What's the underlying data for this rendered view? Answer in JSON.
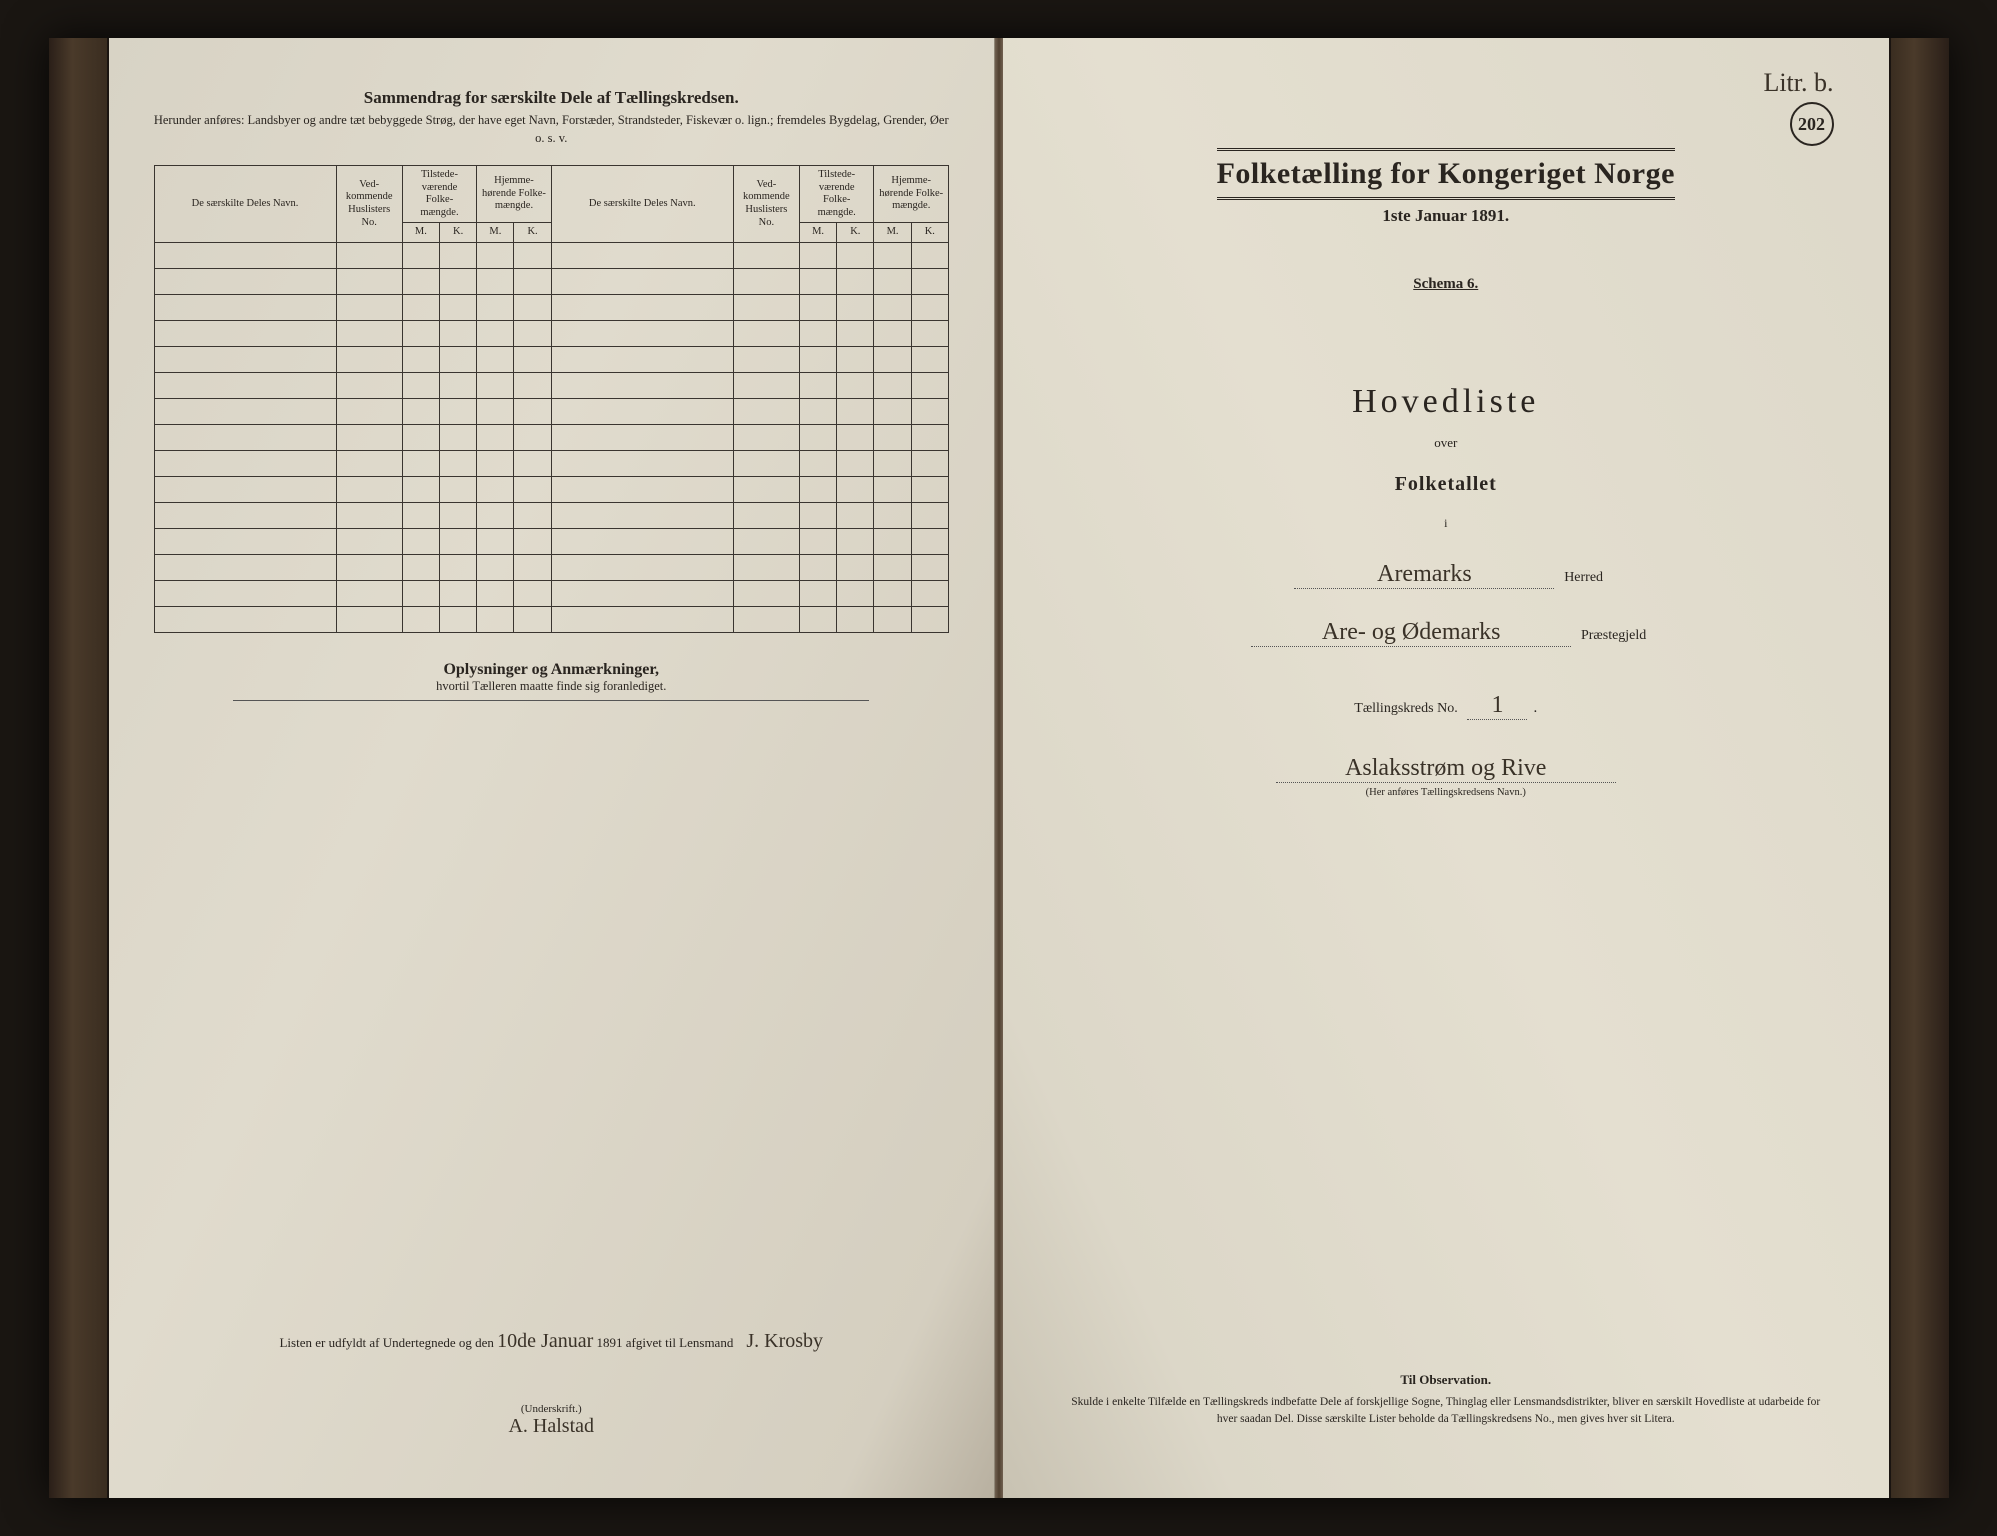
{
  "colors": {
    "paper": "#e0dbcd",
    "ink": "#2a2520",
    "handwriting": "#3a3228",
    "book_edge": "#2a1f18"
  },
  "left": {
    "title": "Sammendrag for særskilte Dele af Tællingskredsen.",
    "subtitle": "Herunder anføres: Landsbyer og andre tæt bebyggede Strøg, der have eget Navn, Forstæder, Strandsteder, Fiskevær o. lign.; fremdeles Bygdelag, Grender, Øer o. s. v.",
    "table": {
      "headers": {
        "name": "De særskilte Deles Navn.",
        "huslister": "Ved-\nkommende\nHuslisters\nNo.",
        "tilstede": "Tilstede-\nværende\nFolke-\nmængde.",
        "hjemme": "Hjemme-\nhørende\nFolke-\nmængde.",
        "m": "M.",
        "k": "K."
      },
      "blank_rows": 15
    },
    "notes_title": "Oplysninger og Anmærkninger,",
    "notes_sub": "hvortil Tælleren maatte finde sig foranlediget.",
    "sig_prefix": "Listen er udfyldt af Undertegnede og den",
    "sig_date_hand": "10de Januar",
    "sig_year": " 1891 afgivet til Lensmand",
    "sig_lensmand": "J. Krosby",
    "underskrift_label": "(Underskrift.)",
    "underskrift_name": "A. Halstad"
  },
  "right": {
    "litr": "Litr. b.",
    "page_number": "202",
    "census_title": "Folketælling for Kongeriget Norge",
    "census_date": "1ste Januar 1891.",
    "schema": "Schema 6.",
    "hovedliste": "Hovedliste",
    "over": "over",
    "folketallet": "Folketallet",
    "i": "i",
    "herred_hand": "Aremarks",
    "herred_label": "Herred",
    "prestegjeld_hand": "Are- og Ødemarks",
    "prestegjeld_label": "Præstegjeld",
    "kreds_label": "Tællingskreds No.",
    "kreds_no": "1",
    "kreds_name": "Aslaksstrøm og Rive",
    "kreds_name_note": "(Her anføres Tællingskredsens Navn.)",
    "obs_title": "Til Observation.",
    "obs_body": "Skulde i enkelte Tilfælde en Tællingskreds indbefatte Dele af forskjellige Sogne, Thinglag eller Lensmandsdistrikter, bliver en særskilt Hovedliste at udarbeide for hver saadan Del. Disse særskilte Lister beholde da Tællingskredsens No., men gives hver sit Litera."
  }
}
